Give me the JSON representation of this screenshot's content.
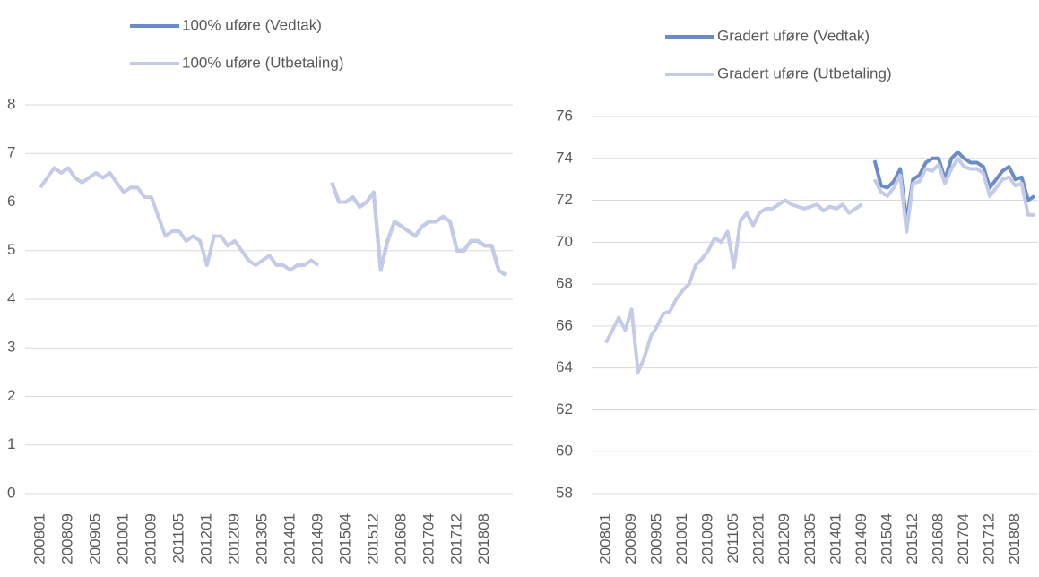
{
  "chart_data": [
    {
      "type": "line",
      "categories": [
        "200801",
        null,
        null,
        null,
        "200809",
        null,
        null,
        null,
        "200905",
        null,
        null,
        null,
        "201001",
        null,
        null,
        null,
        "201009",
        null,
        null,
        null,
        "201105",
        null,
        null,
        null,
        "201201",
        null,
        null,
        null,
        "201209",
        null,
        null,
        null,
        "201305",
        null,
        null,
        null,
        "201401",
        null,
        null,
        null,
        "201409",
        null,
        null,
        null,
        "201504",
        null,
        null,
        null,
        "201512",
        null,
        null,
        null,
        "201608",
        null,
        null,
        null,
        "201704",
        null,
        null,
        null,
        "201712",
        null,
        null,
        null,
        "201808",
        null,
        null,
        null
      ],
      "series": [
        {
          "name": "100% uføre (Vedtak)",
          "color": "#6b8cc7",
          "values": [
            null,
            null,
            null,
            null,
            null,
            null,
            null,
            null,
            null,
            null,
            null,
            null,
            null,
            null,
            null,
            null,
            null,
            null,
            null,
            null,
            null,
            null,
            null,
            null,
            null,
            null,
            null,
            null,
            null,
            null,
            null,
            null,
            null,
            null,
            null,
            null,
            null,
            null,
            null,
            null,
            null,
            null,
            6.4,
            6.0,
            6.0,
            6.1,
            5.9,
            6.0,
            6.2,
            4.6,
            5.2,
            5.6,
            5.5,
            5.4,
            5.3,
            5.5,
            5.6,
            5.6,
            5.7,
            5.6,
            5.0,
            5.0,
            5.2,
            5.2,
            5.1,
            5.1,
            4.6,
            4.5
          ]
        },
        {
          "name": "100% uføre (Utbetaling)",
          "color": "#c4cbe8",
          "values": [
            6.3,
            6.5,
            6.7,
            6.6,
            6.7,
            6.5,
            6.4,
            6.5,
            6.6,
            6.5,
            6.6,
            6.4,
            6.2,
            6.3,
            6.3,
            6.1,
            6.1,
            5.7,
            5.3,
            5.4,
            5.4,
            5.2,
            5.3,
            5.2,
            4.7,
            5.3,
            5.3,
            5.1,
            5.2,
            5.0,
            4.8,
            4.7,
            4.8,
            4.9,
            4.7,
            4.7,
            4.6,
            4.7,
            4.7,
            4.8,
            4.7,
            null,
            6.4,
            6.0,
            6.0,
            6.1,
            5.9,
            6.0,
            6.2,
            4.6,
            5.2,
            5.6,
            5.5,
            5.4,
            5.3,
            5.5,
            5.6,
            5.6,
            5.7,
            5.6,
            5.0,
            5.0,
            5.2,
            5.2,
            5.1,
            5.1,
            4.6,
            4.5
          ]
        }
      ],
      "ylim": [
        0,
        8
      ],
      "yticks": [
        0,
        1,
        2,
        3,
        4,
        5,
        6,
        7,
        8
      ],
      "grid": true
    },
    {
      "type": "line",
      "categories": [
        "200801",
        null,
        null,
        null,
        "200809",
        null,
        null,
        null,
        "200905",
        null,
        null,
        null,
        "201001",
        null,
        null,
        null,
        "201009",
        null,
        null,
        null,
        "201105",
        null,
        null,
        null,
        "201201",
        null,
        null,
        null,
        "201209",
        null,
        null,
        null,
        "201305",
        null,
        null,
        null,
        "201401",
        null,
        null,
        null,
        "201409",
        null,
        null,
        null,
        "201504",
        null,
        null,
        null,
        "201512",
        null,
        null,
        null,
        "201608",
        null,
        null,
        null,
        "201704",
        null,
        null,
        null,
        "201712",
        null,
        null,
        null,
        "201808",
        null,
        null,
        null
      ],
      "series": [
        {
          "name": "Gradert uføre (Vedtak)",
          "color": "#6b8cc7",
          "values": [
            null,
            null,
            null,
            null,
            null,
            null,
            null,
            null,
            null,
            null,
            null,
            null,
            null,
            null,
            null,
            null,
            null,
            null,
            null,
            null,
            null,
            null,
            null,
            null,
            null,
            null,
            null,
            null,
            null,
            null,
            null,
            null,
            null,
            null,
            null,
            null,
            null,
            null,
            null,
            null,
            null,
            null,
            73.9,
            72.7,
            72.6,
            72.9,
            73.5,
            71.0,
            73.0,
            73.2,
            73.8,
            74.0,
            74.0,
            73.0,
            74.0,
            74.3,
            74.0,
            73.8,
            73.8,
            73.6,
            72.6,
            73.0,
            73.4,
            73.6,
            73.0,
            73.1,
            72.0,
            72.2
          ]
        },
        {
          "name": "Gradert uføre (Utbetaling)",
          "color": "#c4cbe8",
          "values": [
            65.2,
            65.8,
            66.4,
            65.8,
            66.8,
            63.8,
            64.5,
            65.5,
            66.0,
            66.6,
            66.7,
            67.3,
            67.7,
            68.0,
            68.9,
            69.2,
            69.6,
            70.2,
            70.0,
            70.5,
            68.8,
            71.0,
            71.4,
            70.8,
            71.4,
            71.6,
            71.6,
            71.8,
            72.0,
            71.8,
            71.7,
            71.6,
            71.7,
            71.8,
            71.5,
            71.7,
            71.6,
            71.8,
            71.4,
            71.6,
            71.8,
            null,
            73.0,
            72.4,
            72.2,
            72.6,
            73.2,
            70.5,
            72.8,
            72.9,
            73.5,
            73.4,
            73.7,
            72.8,
            73.5,
            74.0,
            73.6,
            73.5,
            73.5,
            73.3,
            72.2,
            72.6,
            73.0,
            73.1,
            72.7,
            72.8,
            71.3,
            71.3
          ]
        }
      ],
      "ylim": [
        58,
        76
      ],
      "yticks": [
        58,
        60,
        62,
        64,
        66,
        68,
        70,
        72,
        74,
        76
      ],
      "grid": true
    }
  ]
}
